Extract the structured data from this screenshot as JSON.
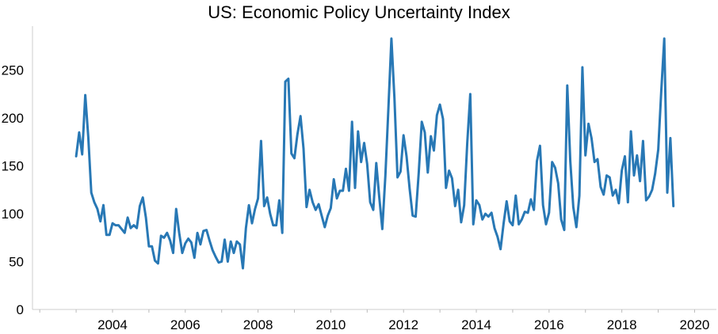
{
  "chart_data": {
    "type": "line",
    "title": "US: Economic Policy Uncertainty Index",
    "xlabel": "",
    "ylabel": "",
    "xlim": [
      2001.8,
      2020.6
    ],
    "ylim": [
      0,
      296
    ],
    "grid": false,
    "legend": "none",
    "line_color": "#2878b5",
    "x_ticks": [
      2004,
      2006,
      2008,
      2010,
      2012,
      2014,
      2016,
      2018,
      2020
    ],
    "y_ticks": [
      0,
      50,
      100,
      150,
      200,
      250
    ],
    "series": [
      {
        "start": 2003.0,
        "step": 0.0833333,
        "values": [
          160,
          185,
          162,
          224,
          180,
          122,
          112,
          105,
          92,
          109,
          78,
          78,
          90,
          88,
          88,
          84,
          80,
          96,
          85,
          88,
          85,
          108,
          117,
          96,
          66,
          66,
          51,
          48,
          77,
          75,
          80,
          72,
          59,
          105,
          80,
          59,
          69,
          74,
          70,
          54,
          80,
          68,
          82,
          83,
          72,
          62,
          55,
          49,
          50,
          73,
          50,
          71,
          59,
          71,
          68,
          43,
          85,
          109,
          90,
          105,
          116,
          176,
          108,
          117,
          100,
          88,
          88,
          114,
          80,
          238,
          241,
          163,
          158,
          183,
          202,
          168,
          107,
          125,
          112,
          104,
          110,
          98,
          86,
          98,
          106,
          136,
          116,
          124,
          124,
          147,
          124,
          196,
          127,
          186,
          154,
          174,
          152,
          112,
          104,
          153,
          117,
          84,
          140,
          210,
          283,
          221,
          138,
          144,
          182,
          160,
          126,
          98,
          97,
          143,
          196,
          185,
          143,
          181,
          166,
          203,
          214,
          199,
          127,
          145,
          137,
          108,
          125,
          91,
          109,
          174,
          225,
          89,
          114,
          109,
          94,
          100,
          97,
          101,
          85,
          76,
          63,
          90,
          113,
          92,
          88,
          119,
          89,
          94,
          102,
          101,
          115,
          104,
          155,
          171,
          109,
          89,
          101,
          154,
          148,
          132,
          94,
          83,
          234,
          155,
          107,
          86,
          119,
          253,
          161,
          194,
          179,
          154,
          157,
          128,
          120,
          140,
          138,
          119,
          125,
          111,
          145,
          160,
          112,
          186,
          140,
          161,
          134,
          176,
          114,
          118,
          125,
          142,
          167,
          228,
          283,
          122,
          179,
          108
        ]
      }
    ]
  }
}
